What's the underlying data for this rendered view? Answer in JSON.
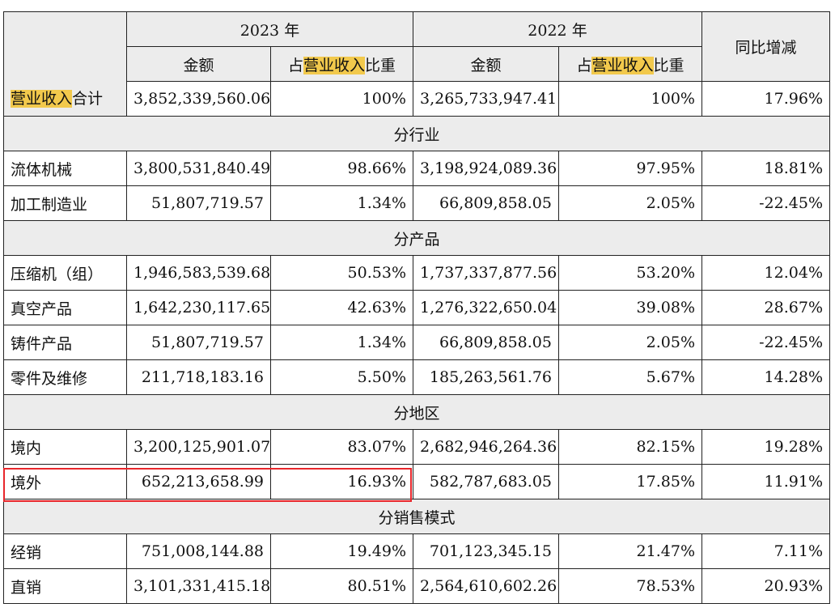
{
  "header": {
    "year_2023": "2023 年",
    "year_2022": "2022 年",
    "amount_label": "金额",
    "share_prefix": "占",
    "share_highlight": "营业收入",
    "share_suffix": "比重",
    "yoy_label": "同比增减"
  },
  "total": {
    "label_highlight": "营业收入",
    "label_suffix": "合计",
    "amt_2023": "3,852,339,560.06",
    "pct_2023": "100%",
    "amt_2022": "3,265,733,947.41",
    "pct_2022": "100%",
    "yoy": "17.96%"
  },
  "sections": [
    {
      "title": "分行业",
      "rows": [
        {
          "label": "流体机械",
          "amt_2023": "3,800,531,840.49",
          "pct_2023": "98.66%",
          "amt_2022": "3,198,924,089.36",
          "pct_2022": "97.95%",
          "yoy": "18.81%"
        },
        {
          "label": "加工制造业",
          "amt_2023": "51,807,719.57",
          "pct_2023": "1.34%",
          "amt_2022": "66,809,858.05",
          "pct_2022": "2.05%",
          "yoy": "-22.45%"
        }
      ]
    },
    {
      "title": "分产品",
      "rows": [
        {
          "label": "压缩机（组）",
          "amt_2023": "1,946,583,539.68",
          "pct_2023": "50.53%",
          "amt_2022": "1,737,337,877.56",
          "pct_2022": "53.20%",
          "yoy": "12.04%"
        },
        {
          "label": "真空产品",
          "amt_2023": "1,642,230,117.65",
          "pct_2023": "42.63%",
          "amt_2022": "1,276,322,650.04",
          "pct_2022": "39.08%",
          "yoy": "28.67%"
        },
        {
          "label": "铸件产品",
          "amt_2023": "51,807,719.57",
          "pct_2023": "1.34%",
          "amt_2022": "66,809,858.05",
          "pct_2022": "2.05%",
          "yoy": "-22.45%"
        },
        {
          "label": "零件及维修",
          "amt_2023": "211,718,183.16",
          "pct_2023": "5.50%",
          "amt_2022": "185,263,561.76",
          "pct_2022": "5.67%",
          "yoy": "14.28%"
        }
      ]
    },
    {
      "title": "分地区",
      "rows": [
        {
          "label": "境内",
          "amt_2023": "3,200,125,901.07",
          "pct_2023": "83.07%",
          "amt_2022": "2,682,946,264.36",
          "pct_2022": "82.15%",
          "yoy": "19.28%"
        },
        {
          "label": "境外",
          "amt_2023": "652,213,658.99",
          "pct_2023": "16.93%",
          "amt_2022": "582,787,683.05",
          "pct_2022": "17.85%",
          "yoy": "11.91%"
        }
      ]
    },
    {
      "title": "分销售模式",
      "rows": [
        {
          "label": "经销",
          "amt_2023": "751,008,144.88",
          "pct_2023": "19.49%",
          "amt_2022": "701,123,345.15",
          "pct_2022": "21.47%",
          "yoy": "7.11%"
        },
        {
          "label": "直销",
          "amt_2023": "3,101,331,415.18",
          "pct_2023": "80.51%",
          "amt_2022": "2,564,610,602.26",
          "pct_2022": "78.53%",
          "yoy": "20.93%"
        }
      ]
    }
  ],
  "colors": {
    "highlight": "#f2c94c",
    "header_bg": "#ececec",
    "annotation_box": "#e8262b"
  }
}
